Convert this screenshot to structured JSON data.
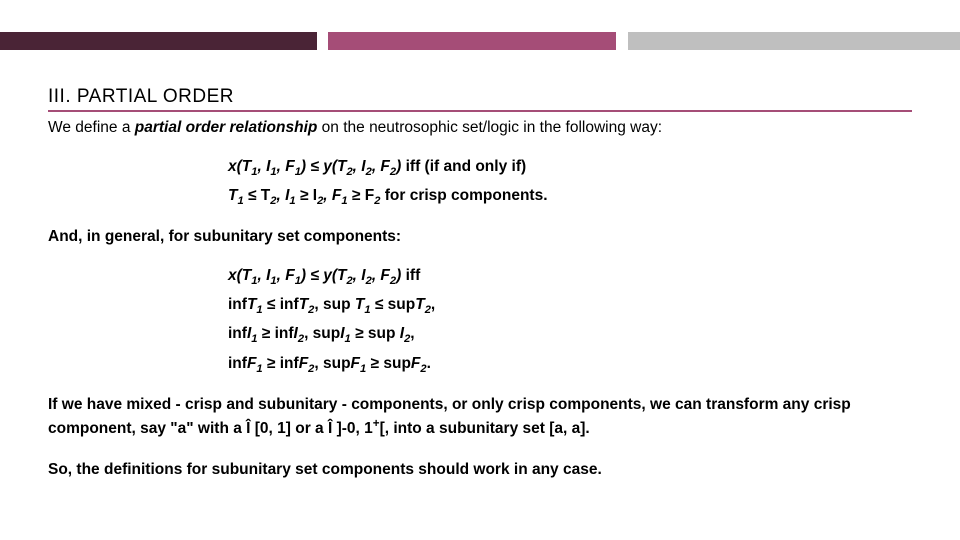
{
  "top_bar": {
    "segments": [
      {
        "width_pct": 33,
        "color": "#4a2436"
      },
      {
        "width_pct": 1.2,
        "color": "#ffffff"
      },
      {
        "width_pct": 30,
        "color": "#a54d77"
      },
      {
        "width_pct": 1.2,
        "color": "#ffffff"
      },
      {
        "width_pct": 34.6,
        "color": "#bfbfbf"
      }
    ]
  },
  "heading": {
    "text": "III. PARTIAL ORDER",
    "underline_color": "#a54d77",
    "fontsize": 19,
    "color": "#000000"
  },
  "p1": {
    "pre": "We define a ",
    "strong": "partial order relationship",
    "post": " on the neutrosophic set/logic in the following way:"
  },
  "block1": {
    "l1_lhs": "x(T",
    "l1_s1": "1",
    "l1_a": ", I",
    "l1_s2": "1",
    "l1_b": ", F",
    "l1_s3": "1",
    "l1_c": ") ≤ y(T",
    "l1_s4": "2",
    "l1_d": ", I",
    "l1_s5": "2",
    "l1_e": ", F",
    "l1_s6": "2",
    "l1_f": ")",
    "l1_iff": " iff (if and only if)",
    "l2_a": "T",
    "l2_s1": "1",
    "l2_b": " ≤ T",
    "l2_s2": "2",
    "l2_c": ", I",
    "l2_s3": "1",
    "l2_d": " ≥ I",
    "l2_s4": "2",
    "l2_e": ", F",
    "l2_s5": "1",
    "l2_f": " ≥ F",
    "l2_s6": "2",
    "l2_g": " for crisp components."
  },
  "p2": {
    "text": "And, in general, for subunitary set components:"
  },
  "block2": {
    "l1_lhs": "x(T",
    "l1_s1": "1",
    "l1_a": ", I",
    "l1_s2": "1",
    "l1_b": ", F",
    "l1_s3": "1",
    "l1_c": ") ≤ y(T",
    "l1_s4": "2",
    "l1_d": ", I",
    "l1_s5": "2",
    "l1_e": ", F",
    "l1_s6": "2",
    "l1_f": ")",
    "l1_iff": " iff",
    "l2_a": "inf",
    "l2_b": "T",
    "l2_s1": "1",
    "l2_c": " ≤ inf",
    "l2_d": "T",
    "l2_s2": "2",
    "l2_e": ", sup ",
    "l2_f": "T",
    "l2_s3": "1",
    "l2_g": " ≤ sup",
    "l2_h": "T",
    "l2_s4": "2",
    "l2_i": ",",
    "l3_a": "inf",
    "l3_b": "I",
    "l3_s1": "1",
    "l3_c": " ≥ inf",
    "l3_d": "I",
    "l3_s2": "2",
    "l3_e": ", sup",
    "l3_f": "I",
    "l3_s3": "1",
    "l3_g": " ≥ sup ",
    "l3_h": "I",
    "l3_s4": "2",
    "l3_i": ",",
    "l4_a": "inf",
    "l4_b": "F",
    "l4_s1": "1",
    "l4_c": " ≥ inf",
    "l4_d": "F",
    "l4_s2": "2",
    "l4_e": ", sup",
    "l4_f": "F",
    "l4_s3": "1",
    "l4_g": " ≥ sup",
    "l4_h": "F",
    "l4_s4": "2",
    "l4_i": "."
  },
  "p3": {
    "a": "If we have mixed - crisp and subunitary - components, or only crisp components, we can transform any crisp component, say \"a\" with a Î [0, 1] or a Î ]-0, 1",
    "plus": "+",
    "b": "[, into a subunitary set [a, a]."
  },
  "p4": {
    "text": "So, the definitions for subunitary set components should work in any case."
  }
}
